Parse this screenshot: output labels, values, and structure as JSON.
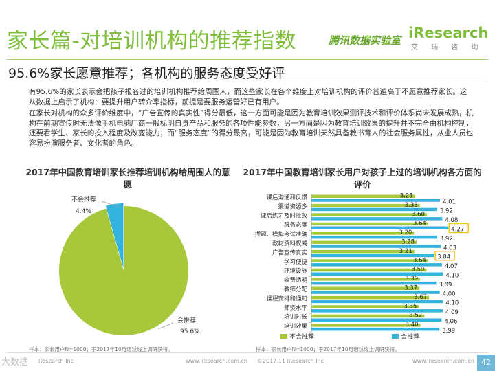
{
  "header": {
    "title": "家长篇-对培训机构的推荐指数",
    "partner": "腾讯数据实验室",
    "logo_text": "iResearch",
    "logo_cn": "艾 瑞 咨 询",
    "subtitle": "95.6%家长愿意推荐；各机构的服务态度受好评"
  },
  "body": {
    "p1": "有95.6%的家长表示会把孩子报名过的培训机构推荐给周围人，而这些家长在各个维度上对培训机构的评价普遍高于不愿意推荐家长。这从数据上启示了机构：要提升用户转介率指标，前提是要服务运营好已有用户。",
    "p2": "在家长对机构的众多评价维度中，“广告宣传的真实性”得分最低，这一方面可能是因为教育培训效果测评技术和评价体系尚未发展成熟，机构在前期宣传时无法像手机电脑厂商一般标明自身产品和服务的各项性能参数，另一方面是因为教育培训效果的提升并不完全由机构控制，还要看学生、家长的投入程度及改变能力；而“服务态度”的得分最高，可能是因为教育培训天然具备教书育人的社会服务属性，从业人员也容易扮演服务者、文化者的角色。"
  },
  "chart_data": [
    {
      "type": "pie",
      "title": "2017年中国教育培训家长推荐培训机构给周围人的意愿",
      "slices": [
        {
          "label": "会推荐",
          "value": 95.6,
          "display": "95.6%",
          "color": "#a6c83a"
        },
        {
          "label": "不会推荐",
          "value": 4.4,
          "display": "4.4%",
          "color": "#33b3de"
        }
      ],
      "source": "样本：家长用户N=1000；于2017年10月通过线上调研获得。"
    },
    {
      "type": "bar",
      "orientation": "horizontal",
      "title": "2017年中国教育培训家长用户对孩子上过的培训机构各方面的评价",
      "categories": [
        "课后沟通和反馈",
        "渠道资源多",
        "课后练习及时批改",
        "服务态度",
        "押题、模拟考试准确",
        "教材资料权威",
        "广告宣传真实",
        "学习便捷",
        "环境设施",
        "收费透明",
        "教师分配",
        "课程安排和通知",
        "师资水平",
        "培训时长",
        "培训效果"
      ],
      "series": [
        {
          "name": "不会推荐",
          "color": "#a6c83a",
          "values": [
            3.23,
            3.38,
            3.6,
            3.64,
            3.2,
            3.28,
            3.21,
            3.64,
            3.59,
            3.39,
            3.37,
            3.67,
            3.35,
            3.52,
            3.4
          ]
        },
        {
          "name": "会推荐",
          "color": "#33b3de",
          "values": [
            4.01,
            3.92,
            4.08,
            4.27,
            3.92,
            4.03,
            3.84,
            4.07,
            4.1,
            3.89,
            4.0,
            4.1,
            4.09,
            4.06,
            3.99
          ]
        }
      ],
      "highlights": [
        {
          "category": "服务态度",
          "series": "会推荐"
        },
        {
          "category": "广告宣传真实",
          "series": "会推荐"
        }
      ],
      "highlight_color": "#f5c518",
      "xlim": [
        0,
        4.5
      ],
      "source": "样本：家长用户N=1000；于2017年10月通过线上调研获得。"
    }
  ],
  "footer": {
    "left": "Research Inc",
    "mid": "www.iresearch.com.cn",
    "copyright": "©2017.11 iResearch Inc",
    "right": "www.iresearch.com.cn",
    "page": "42",
    "watermark": "大数据"
  }
}
